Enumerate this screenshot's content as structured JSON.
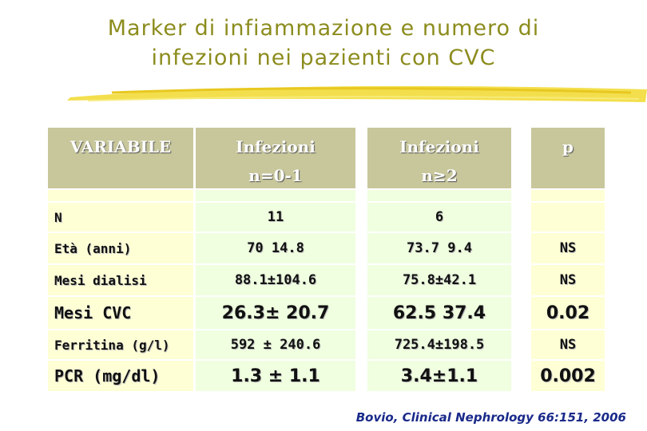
{
  "title_lines": [
    "Marker di infiammazione e numero di",
    "infezioni  nei pazienti con CVC"
  ],
  "table": {
    "header": [
      [
        "VARIABILE"
      ],
      [
        "Infezioni",
        "n=0-1"
      ],
      [
        "Infezioni",
        "n≥2"
      ],
      [
        "p"
      ]
    ],
    "rows": [
      [
        "N",
        "11",
        "6"
      ],
      [
        "Età (anni)",
        "70  14.8",
        "73.7  9.4",
        "NS"
      ],
      [
        "Mesi dialisi",
        "88.1±104.6",
        "75.8±42.1",
        "NS"
      ],
      [
        "Mesi CVC",
        "26.3± 20.7",
        "62.5  37.4",
        "0.02"
      ],
      [
        "Ferritina (g/l)",
        "592 ± 240.6",
        "725.4±198.5",
        "NS"
      ],
      [
        "PCR (mg/dl)",
        "1.3 ± 1.1",
        "3.4±1.1",
        "0.002"
      ]
    ]
  },
  "citation": "Bovio, Clinical Nephrology 66:151, 2006"
}
